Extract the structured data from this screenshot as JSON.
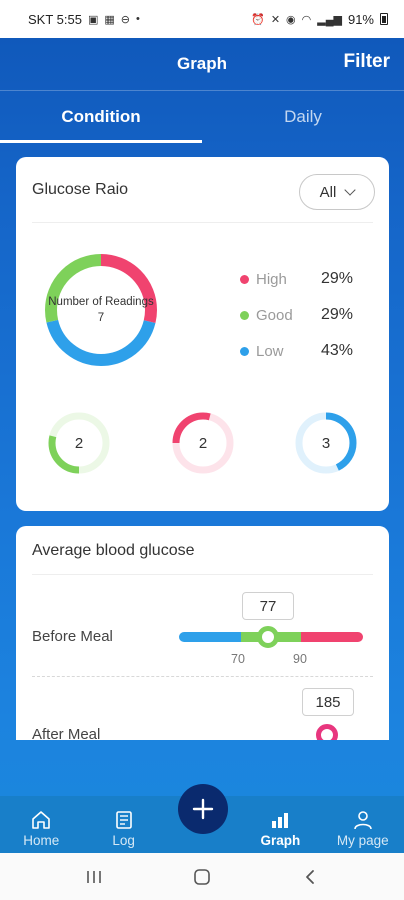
{
  "status_bar": {
    "carrier_time": "SKT 5:55",
    "battery": "91%"
  },
  "header": {
    "title": "Graph",
    "filter_label": "Filter"
  },
  "tabs": [
    {
      "label": "Condition",
      "active": true
    },
    {
      "label": "Daily",
      "active": false
    }
  ],
  "glucose_ratio": {
    "title": "Glucose Raio",
    "filter_value": "All",
    "center_label": "Number of Readings",
    "center_value": "7",
    "legend": [
      {
        "label": "High",
        "percent": "29%",
        "color": "#f0436f"
      },
      {
        "label": "Good",
        "percent": "29%",
        "color": "#7ed15a"
      },
      {
        "label": "Low",
        "percent": "43%",
        "color": "#2ea0ea"
      }
    ],
    "counts": [
      {
        "value": "2",
        "color": "#7ed15a",
        "fraction": 0.29
      },
      {
        "value": "2",
        "color": "#f0436f",
        "fraction": 0.29
      },
      {
        "value": "3",
        "color": "#2ea0ea",
        "fraction": 0.43
      }
    ]
  },
  "average_glucose": {
    "title": "Average blood glucose",
    "before_meal": {
      "label": "Before Meal",
      "value": "77",
      "low_threshold": "70",
      "high_threshold": "90"
    },
    "after_meal": {
      "label": "After Meal",
      "value": "185"
    }
  },
  "bottom_nav": [
    {
      "label": "Home",
      "icon": "home-icon",
      "active": false
    },
    {
      "label": "Log",
      "icon": "log-icon",
      "active": false
    },
    {
      "label": "Graph",
      "icon": "graph-icon",
      "active": true
    },
    {
      "label": "My page",
      "icon": "person-icon",
      "active": false
    }
  ],
  "colors": {
    "primary": "#1565c8",
    "high": "#f0436f",
    "good": "#7ed15a",
    "low": "#2ea0ea",
    "fab": "#0a2a6e"
  }
}
